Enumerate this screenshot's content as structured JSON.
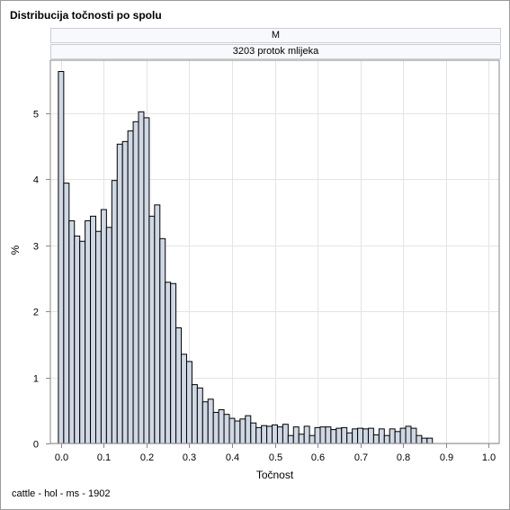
{
  "title": "Distribucija točnosti po spolu",
  "panel": {
    "group_label": "M",
    "trait_label": "3203 protok mlijeka"
  },
  "footnote": "cattle - hol - ms - 1902",
  "colors": {
    "bar_fill": "#cfd8e4",
    "bar_stroke": "#000000",
    "grid": "#e4e4e4",
    "axis": "#8a8a8a"
  },
  "chart_data": {
    "type": "bar",
    "title": "Distribucija točnosti po spolu",
    "xlabel": "Točnost",
    "ylabel": "%",
    "xlim": [
      -0.025,
      1.025
    ],
    "ylim": [
      0,
      5.8
    ],
    "bin_width": 0.0125,
    "bin_start": 0.0,
    "xticks": [
      "0.0",
      "0.1",
      "0.2",
      "0.3",
      "0.4",
      "0.5",
      "0.6",
      "0.7",
      "0.8",
      "0.9",
      "1.0"
    ],
    "xtick_values": [
      0,
      0.1,
      0.2,
      0.3,
      0.4,
      0.5,
      0.6,
      0.7,
      0.8,
      0.9,
      1.0
    ],
    "yticks": [
      "0",
      "1",
      "2",
      "3",
      "4",
      "5"
    ],
    "ytick_values": [
      0,
      1,
      2,
      3,
      4,
      5
    ],
    "grid": true,
    "values": [
      5.63,
      3.94,
      3.37,
      3.14,
      3.06,
      3.37,
      3.44,
      3.21,
      3.54,
      3.27,
      3.98,
      4.53,
      4.57,
      4.73,
      4.87,
      5.02,
      4.93,
      3.44,
      3.61,
      3.1,
      2.44,
      2.42,
      1.75,
      1.35,
      1.24,
      0.89,
      0.84,
      0.63,
      0.67,
      0.47,
      0.51,
      0.44,
      0.38,
      0.34,
      0.37,
      0.42,
      0.31,
      0.24,
      0.27,
      0.26,
      0.28,
      0.25,
      0.29,
      0.12,
      0.25,
      0.14,
      0.26,
      0.12,
      0.24,
      0.25,
      0.25,
      0.21,
      0.23,
      0.24,
      0.16,
      0.22,
      0.23,
      0.22,
      0.23,
      0.13,
      0.22,
      0.12,
      0.22,
      0.18,
      0.23,
      0.26,
      0.23,
      0.12,
      0.08,
      0.08
    ]
  }
}
